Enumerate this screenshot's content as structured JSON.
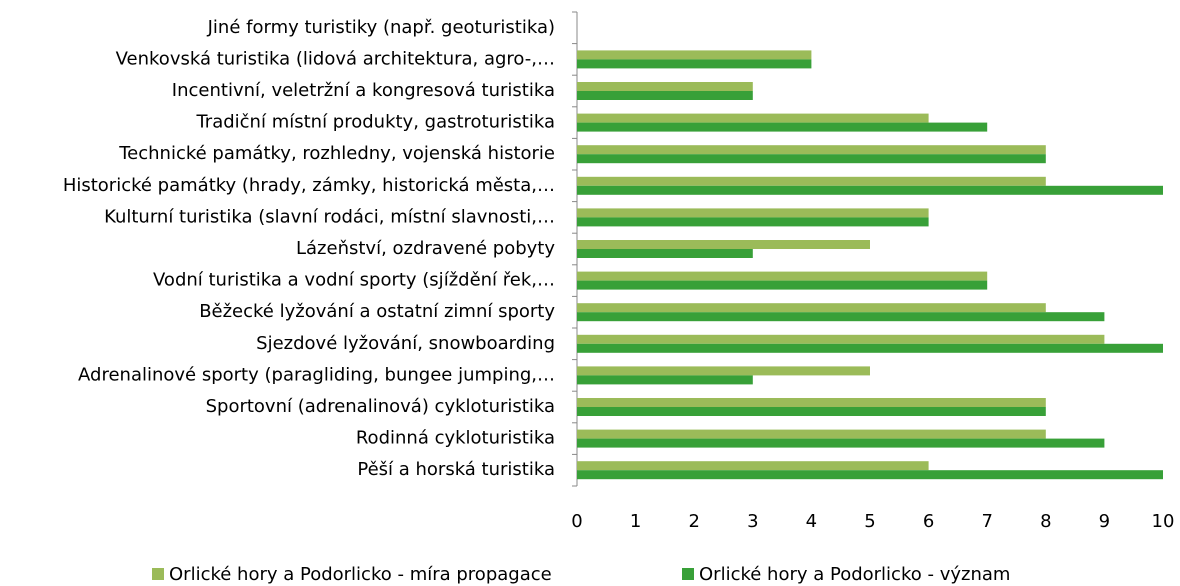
{
  "chart_data": {
    "type": "bar",
    "orientation": "horizontal",
    "categories": [
      "Jiné formy turistiky (např. geoturistika)",
      "Venkovská turistika (lidová architektura, agro-,…",
      "Incentivní, veletržní a kongresová turistika",
      "Tradiční místní produkty, gastroturistika",
      "Technické památky, rozhledny, vojenská historie",
      "Historické památky (hrady, zámky, historická města,…",
      "Kulturní turistika (slavní rodáci, místní slavnosti,…",
      "Lázeňství, ozdravené pobyty",
      "Vodní turistika a vodní sporty (sjíždění řek,…",
      "Běžecké lyžování a ostatní zimní sporty",
      "Sjezdové lyžování, snowboarding",
      "Adrenalinové sporty (paragliding, bungee jumping,…",
      "Sportovní (adrenalinová) cykloturistika",
      "Rodinná cykloturistika",
      "Pěší a horská turistika"
    ],
    "series": [
      {
        "name": "Orlické hory a Podorlicko - míra propagace",
        "color": "#9bbb59",
        "values": [
          0,
          4,
          3,
          6,
          8,
          8,
          6,
          5,
          7,
          8,
          9,
          5,
          8,
          8,
          6
        ]
      },
      {
        "name": "Orlické hory a Podorlicko - význam",
        "color": "#38a038",
        "values": [
          0,
          4,
          3,
          7,
          8,
          10,
          6,
          3,
          7,
          9,
          10,
          3,
          8,
          9,
          10
        ]
      }
    ],
    "xlim": [
      0,
      10
    ],
    "xticks": [
      0,
      1,
      2,
      3,
      4,
      5,
      6,
      7,
      8,
      9,
      10
    ],
    "legend": "bottom"
  }
}
